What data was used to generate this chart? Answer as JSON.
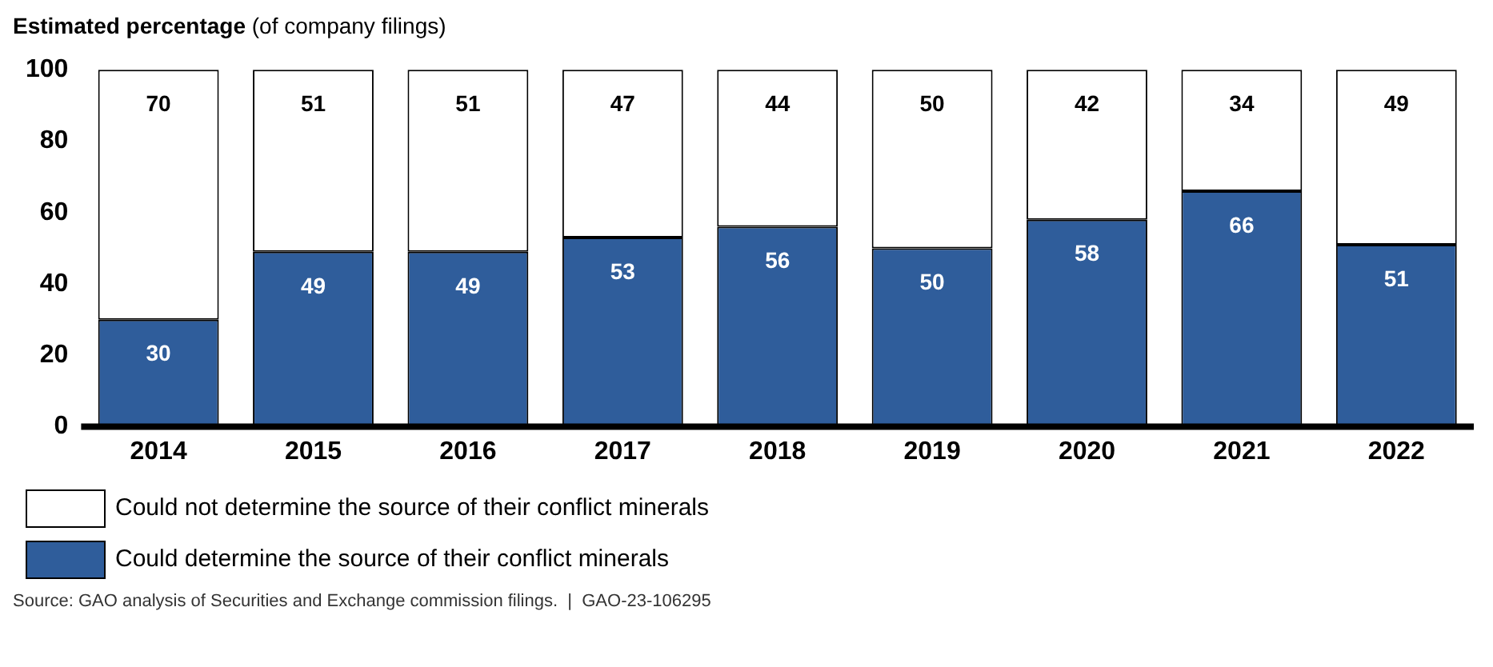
{
  "chart_data": {
    "type": "bar",
    "title": "Estimated percentage",
    "subtitle": "(of company filings)",
    "categories": [
      "2014",
      "2015",
      "2016",
      "2017",
      "2018",
      "2019",
      "2020",
      "2021",
      "2022"
    ],
    "series": [
      {
        "name": "Could determine the source of their conflict minerals",
        "color": "#2f5d9b",
        "values": [
          30,
          49,
          49,
          53,
          56,
          50,
          58,
          66,
          51
        ]
      },
      {
        "name": "Could not determine the source of their conflict minerals",
        "color": "#ffffff",
        "values": [
          70,
          51,
          51,
          47,
          44,
          50,
          42,
          34,
          49
        ]
      }
    ],
    "stacked": true,
    "ylim": [
      0,
      100
    ],
    "yticks": [
      0,
      20,
      40,
      60,
      80,
      100
    ],
    "grid": false,
    "legend": "bottom left",
    "data_labels": true,
    "annotations": [
      "Source: GAO analysis of Securities and Exchange commission filings.  |  GAO-23-106295"
    ]
  }
}
